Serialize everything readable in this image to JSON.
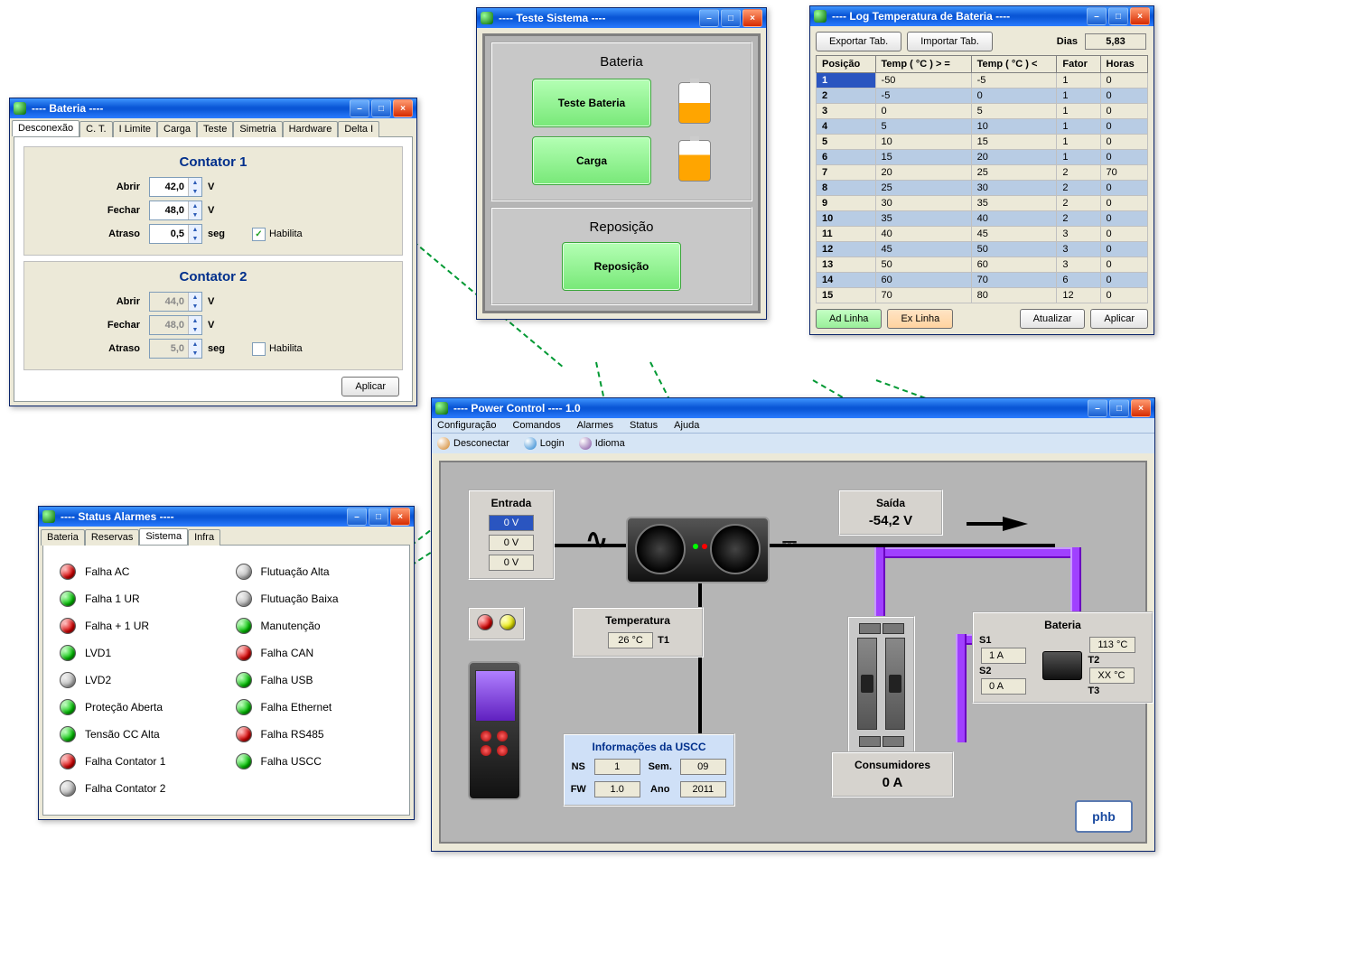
{
  "bateria_win": {
    "title": "---- Bateria ----",
    "tabs": [
      "Desconexão",
      "C. T.",
      "I Limite",
      "Carga",
      "Teste",
      "Simetria",
      "Hardware",
      "Delta I"
    ],
    "active_tab": 0,
    "contator1": {
      "title": "Contator 1",
      "abrir_label": "Abrir",
      "abrir_val": "42,0",
      "abrir_unit": "V",
      "fechar_label": "Fechar",
      "fechar_val": "48,0",
      "fechar_unit": "V",
      "atraso_label": "Atraso",
      "atraso_val": "0,5",
      "atraso_unit": "seg",
      "habilita_label": "Habilita",
      "habilita_checked": true
    },
    "contator2": {
      "title": "Contator 2",
      "abrir_label": "Abrir",
      "abrir_val": "44,0",
      "abrir_unit": "V",
      "fechar_label": "Fechar",
      "fechar_val": "48,0",
      "fechar_unit": "V",
      "atraso_label": "Atraso",
      "atraso_val": "5,0",
      "atraso_unit": "seg",
      "habilita_label": "Habilita",
      "habilita_checked": false
    },
    "apply": "Aplicar"
  },
  "teste_win": {
    "title": "---- Teste Sistema ----",
    "bateria_title": "Bateria",
    "reposicao_title": "Reposição",
    "btn_teste": "Teste Bateria",
    "btn_carga": "Carga",
    "btn_reposicao": "Reposição"
  },
  "log_win": {
    "title": "---- Log Temperatura de Bateria ----",
    "exportar": "Exportar Tab.",
    "importar": "Importar Tab.",
    "dias_label": "Dias",
    "dias_val": "5,83",
    "columns": [
      "Posição",
      "Temp ( °C ) > =",
      "Temp ( °C ) <",
      "Fator",
      "Horas"
    ],
    "rows": [
      [
        "1",
        "-50",
        "-5",
        "1",
        "0"
      ],
      [
        "2",
        "-5",
        "0",
        "1",
        "0"
      ],
      [
        "3",
        "0",
        "5",
        "1",
        "0"
      ],
      [
        "4",
        "5",
        "10",
        "1",
        "0"
      ],
      [
        "5",
        "10",
        "15",
        "1",
        "0"
      ],
      [
        "6",
        "15",
        "20",
        "1",
        "0"
      ],
      [
        "7",
        "20",
        "25",
        "2",
        "70"
      ],
      [
        "8",
        "25",
        "30",
        "2",
        "0"
      ],
      [
        "9",
        "30",
        "35",
        "2",
        "0"
      ],
      [
        "10",
        "35",
        "40",
        "2",
        "0"
      ],
      [
        "11",
        "40",
        "45",
        "3",
        "0"
      ],
      [
        "12",
        "45",
        "50",
        "3",
        "0"
      ],
      [
        "13",
        "50",
        "60",
        "3",
        "0"
      ],
      [
        "14",
        "60",
        "70",
        "6",
        "0"
      ],
      [
        "15",
        "70",
        "80",
        "12",
        "0"
      ]
    ],
    "ad_linha": "Ad Linha",
    "ex_linha": "Ex Linha",
    "atualizar": "Atualizar",
    "aplicar": "Aplicar"
  },
  "alarms_win": {
    "title": "---- Status Alarmes ----",
    "tabs": [
      "Bateria",
      "Reservas",
      "Sistema",
      "Infra"
    ],
    "active_tab": 2,
    "items": [
      {
        "label": "Falha AC",
        "color": "red"
      },
      {
        "label": "Falha 1 UR",
        "color": "green"
      },
      {
        "label": "Falha + 1 UR",
        "color": "red"
      },
      {
        "label": "LVD1",
        "color": "green"
      },
      {
        "label": "LVD2",
        "color": "grey"
      },
      {
        "label": "Proteção Aberta",
        "color": "green"
      },
      {
        "label": "Tensão CC Alta",
        "color": "green"
      },
      {
        "label": "Falha Contator 1",
        "color": "red"
      },
      {
        "label": "Falha Contator 2",
        "color": "grey"
      },
      {
        "label": "Flutuação Alta",
        "color": "grey"
      },
      {
        "label": "Flutuação Baixa",
        "color": "grey"
      },
      {
        "label": "Manutenção",
        "color": "green"
      },
      {
        "label": "Falha CAN",
        "color": "red"
      },
      {
        "label": "Falha USB",
        "color": "green"
      },
      {
        "label": "Falha Ethernet",
        "color": "green"
      },
      {
        "label": "Falha RS485",
        "color": "red"
      },
      {
        "label": "Falha USCC",
        "color": "green"
      }
    ]
  },
  "power_win": {
    "title": "---- Power Control ----     1.0",
    "menus": [
      "Configuração",
      "Comandos",
      "Alarmes",
      "Status",
      "Ajuda"
    ],
    "toolbar": [
      {
        "icon": "#d08020",
        "label": "Desconectar"
      },
      {
        "icon": "#2080d0",
        "label": "Login"
      },
      {
        "icon": "#8050a0",
        "label": "Idioma"
      }
    ],
    "entrada": {
      "title": "Entrada",
      "v1": "0 V",
      "v2": "0 V",
      "v3": "0 V"
    },
    "saida": {
      "title": "Saída",
      "val": "-54,2 V"
    },
    "temperatura": {
      "title": "Temperatura",
      "val": "26 °C",
      "sensor": "T1"
    },
    "uscc": {
      "title": "Informações da USCC",
      "ns_label": "NS",
      "ns_val": "1",
      "sem_label": "Sem.",
      "sem_val": "09",
      "fw_label": "FW",
      "fw_val": "1.0",
      "ano_label": "Ano",
      "ano_val": "2011"
    },
    "consumidores": {
      "title": "Consumidores",
      "val": "0 A"
    },
    "bateria_panel": {
      "title": "Bateria",
      "s1": "S1",
      "s1_val": "1 A",
      "t2": "113 °C",
      "t2_label": "T2",
      "s2": "S2",
      "s2_val": "0 A",
      "t3": "XX °C",
      "t3_label": "T3"
    },
    "logo_text": "phb"
  }
}
